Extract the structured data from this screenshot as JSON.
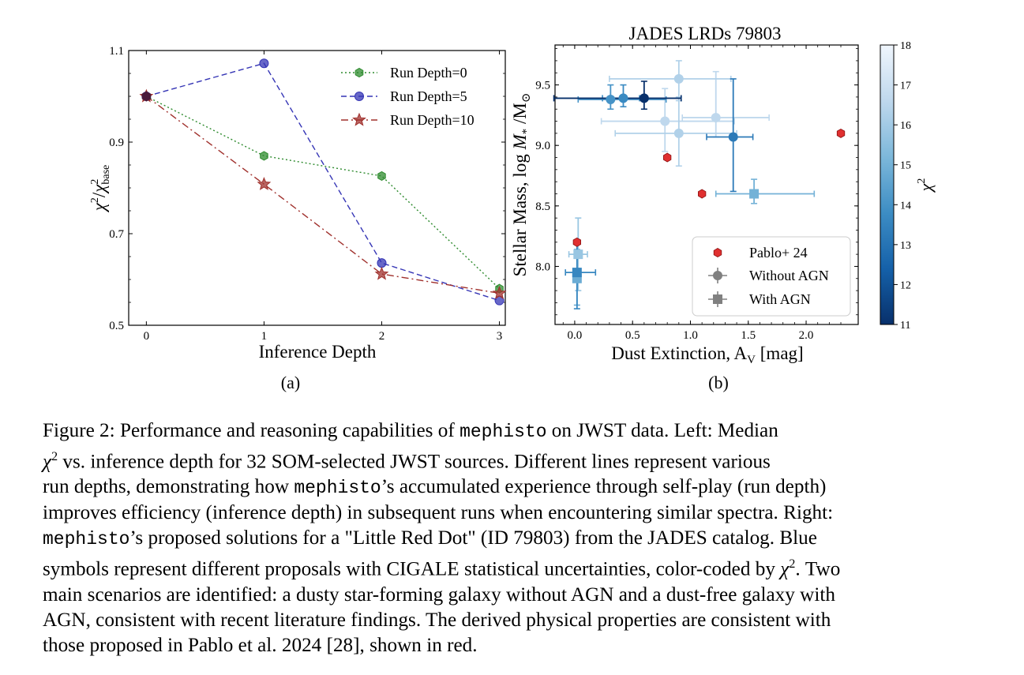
{
  "colors": {
    "run0": "#2e8b2e",
    "run5": "#3535b5",
    "run10": "#a0302c",
    "pablo": "#e03030",
    "cmap_low": "#08306b",
    "cmap_high": "#f0f6fd"
  },
  "chart_data": [
    {
      "type": "line",
      "panel_label": "(a)",
      "title": "",
      "xlabel": "Inference Depth",
      "ylabel_parts": {
        "chi": "χ",
        "sq": "2",
        "slash": "/",
        "chi2": "χ",
        "sq2": "2",
        "sub": "base"
      },
      "xlim": [
        -0.15,
        3.05
      ],
      "ylim": [
        0.5,
        1.1
      ],
      "xticks": [
        "0",
        "1",
        "2",
        "3"
      ],
      "yticks": [
        "0.5",
        "0.7",
        "0.9",
        "1.1"
      ],
      "x": [
        0,
        1,
        2,
        3
      ],
      "legend_placement": "top-right",
      "series": [
        {
          "name": "Run Depth=0",
          "values": [
            1.0,
            0.87,
            0.826,
            0.58
          ],
          "style": "dotted",
          "marker": "hexagon",
          "color": "#2e8b2e"
        },
        {
          "name": "Run Depth=5",
          "values": [
            1.0,
            1.072,
            0.636,
            0.554
          ],
          "style": "dashed",
          "marker": "circle",
          "color": "#3535b5"
        },
        {
          "name": "Run Depth=10",
          "values": [
            1.0,
            0.808,
            0.612,
            0.57
          ],
          "style": "dashdot",
          "marker": "star",
          "color": "#a0302c"
        }
      ]
    },
    {
      "type": "scatter",
      "panel_label": "(b)",
      "title": "JADES LRDs 79803",
      "xlabel": "Dust Extinction, A",
      "xlabel_sub": "V",
      "xlabel_unit": " [mag]",
      "ylabel": "Stellar Mass, log ",
      "ylabel_math": "M",
      "ylabel_rest": " /M",
      "ylabel_sub1": "*",
      "ylabel_sub2": "⊙",
      "xlim": [
        -0.17,
        2.45
      ],
      "ylim": [
        7.52,
        9.83
      ],
      "xticks": [
        "0.0",
        "0.5",
        "1.0",
        "1.5",
        "2.0"
      ],
      "yticks": [
        "8.0",
        "8.5",
        "9.0",
        "9.5"
      ],
      "colorbar": {
        "label": "χ",
        "label_sup": "2",
        "min": 11,
        "max": 18,
        "ticks": [
          "11",
          "12",
          "13",
          "14",
          "15",
          "16",
          "17",
          "18"
        ]
      },
      "legend_placement": "lower-right",
      "legend": [
        "Pablo+ 24",
        "Without AGN",
        "With AGN"
      ],
      "pablo_points": [
        {
          "x": 0.02,
          "y": 8.2
        },
        {
          "x": 0.8,
          "y": 8.9
        },
        {
          "x": 1.1,
          "y": 8.6
        },
        {
          "x": 2.3,
          "y": 9.1
        }
      ],
      "without_agn": [
        {
          "x": 0.6,
          "y": 9.39,
          "xerr": [
            0.78,
            0.32
          ],
          "yerr": [
            0.09,
            0.14
          ],
          "chi2": 11.0
        },
        {
          "x": 0.31,
          "y": 9.38,
          "xerr": [
            0.28,
            0.48
          ],
          "yerr": [
            0.08,
            0.12
          ],
          "chi2": 14.0
        },
        {
          "x": 0.42,
          "y": 9.39,
          "xerr": [
            0.18,
            0.14
          ],
          "yerr": [
            0.07,
            0.11
          ],
          "chi2": 13.7
        },
        {
          "x": 1.37,
          "y": 9.07,
          "xerr": [
            0.23,
            0.17
          ],
          "yerr": [
            0.45,
            0.48
          ],
          "chi2": 13.2
        },
        {
          "x": 0.9,
          "y": 9.55,
          "xerr": [
            0.6,
            0.45
          ],
          "yerr": [
            0.18,
            0.15
          ],
          "chi2": 16.3
        },
        {
          "x": 0.78,
          "y": 9.2,
          "xerr": [
            0.55,
            0.6
          ],
          "yerr": [
            0.25,
            0.27
          ],
          "chi2": 16.6
        },
        {
          "x": 1.22,
          "y": 9.23,
          "xerr": [
            0.29,
            0.46
          ],
          "yerr": [
            0.16,
            0.38
          ],
          "chi2": 16.6
        },
        {
          "x": 0.9,
          "y": 9.1,
          "xerr": [
            0.55,
            0.5
          ],
          "yerr": [
            0.27,
            0.3
          ],
          "chi2": 16.3
        }
      ],
      "with_agn": [
        {
          "x": 1.55,
          "y": 8.6,
          "xerr": [
            0.33,
            0.52
          ],
          "yerr": [
            0.08,
            0.12
          ],
          "chi2": 15.0
        },
        {
          "x": 0.03,
          "y": 8.1,
          "xerr": [
            0.08,
            0.08
          ],
          "yerr": [
            0.3,
            0.3
          ],
          "chi2": 15.8
        },
        {
          "x": 0.02,
          "y": 7.95,
          "xerr": [
            0.1,
            0.16
          ],
          "yerr": [
            0.3,
            0.27
          ],
          "chi2": 13.6
        },
        {
          "x": 0.02,
          "y": 7.9,
          "xerr": [
            0.03,
            0.03
          ],
          "yerr": [
            0.22,
            0.24
          ],
          "chi2": 14.8
        }
      ]
    }
  ],
  "caption": {
    "l1": {
      "a": "Figure 2: Performance and reasoning capabilities of ",
      "b": "mephisto",
      "c": " on JWST data.  Left: Median"
    },
    "l2": {
      "chi": "χ",
      "sq": "2",
      "rest": " vs.  inference depth for 32 SOM-selected JWST sources.  Different lines represent various"
    },
    "l3": {
      "a": "run depths, demonstrating how ",
      "b": "mephisto",
      "c": "’s accumulated experience through self-play (run depth)"
    },
    "l4": {
      "a": "improves efficiency (inference depth) in subsequent runs when encountering similar spectra. Right:"
    },
    "l5": {
      "b": "mephisto",
      "c": "’s proposed solutions for a \"Little Red Dot\" (ID 79803) from the JADES catalog. Blue"
    },
    "l6": {
      "a": "symbols represent different proposals with CIGALE statistical uncertainties, color-coded by ",
      "chi": "χ",
      "sq": "2",
      "c": ". Two"
    },
    "l7": {
      "a": "main scenarios are identified: a dusty star-forming galaxy without AGN and a dust-free galaxy with"
    },
    "l8": {
      "a": "AGN, consistent with recent literature findings. The derived physical properties are consistent with"
    },
    "l9": {
      "a": "those proposed in Pablo et al. 2024 [28], shown in red."
    }
  }
}
